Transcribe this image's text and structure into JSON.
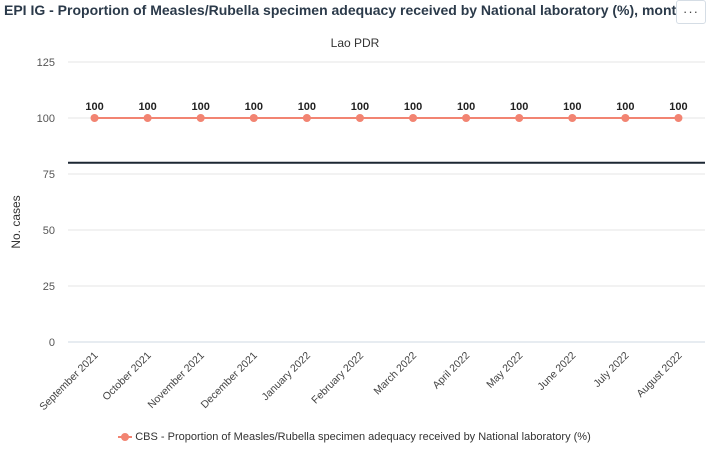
{
  "header": {
    "title": "EPI IG - Proportion of Measles/Rubella specimen adequacy received by National laboratory (%), monthly",
    "menu_label": "···"
  },
  "chart_data": {
    "type": "line",
    "subtitle": "Lao PDR",
    "ylabel": "No. cases",
    "xlabel": "",
    "categories": [
      "September 2021",
      "October 2021",
      "November 2021",
      "December 2021",
      "January 2022",
      "February 2022",
      "March 2022",
      "April 2022",
      "May 2022",
      "June 2022",
      "July 2022",
      "August 2022"
    ],
    "series": [
      {
        "name": "CBS - Proportion of Measles/Rubella specimen adequacy received by National laboratory (%)",
        "values": [
          100,
          100,
          100,
          100,
          100,
          100,
          100,
          100,
          100,
          100,
          100,
          100
        ],
        "color": "#f28472",
        "data_labels": true
      }
    ],
    "yticks": [
      0,
      25,
      50,
      75,
      100,
      125
    ],
    "ylim": [
      0,
      125
    ],
    "target_line": {
      "value": 80,
      "color": "#1c2733"
    },
    "grid": true,
    "legend_position": "bottom"
  }
}
